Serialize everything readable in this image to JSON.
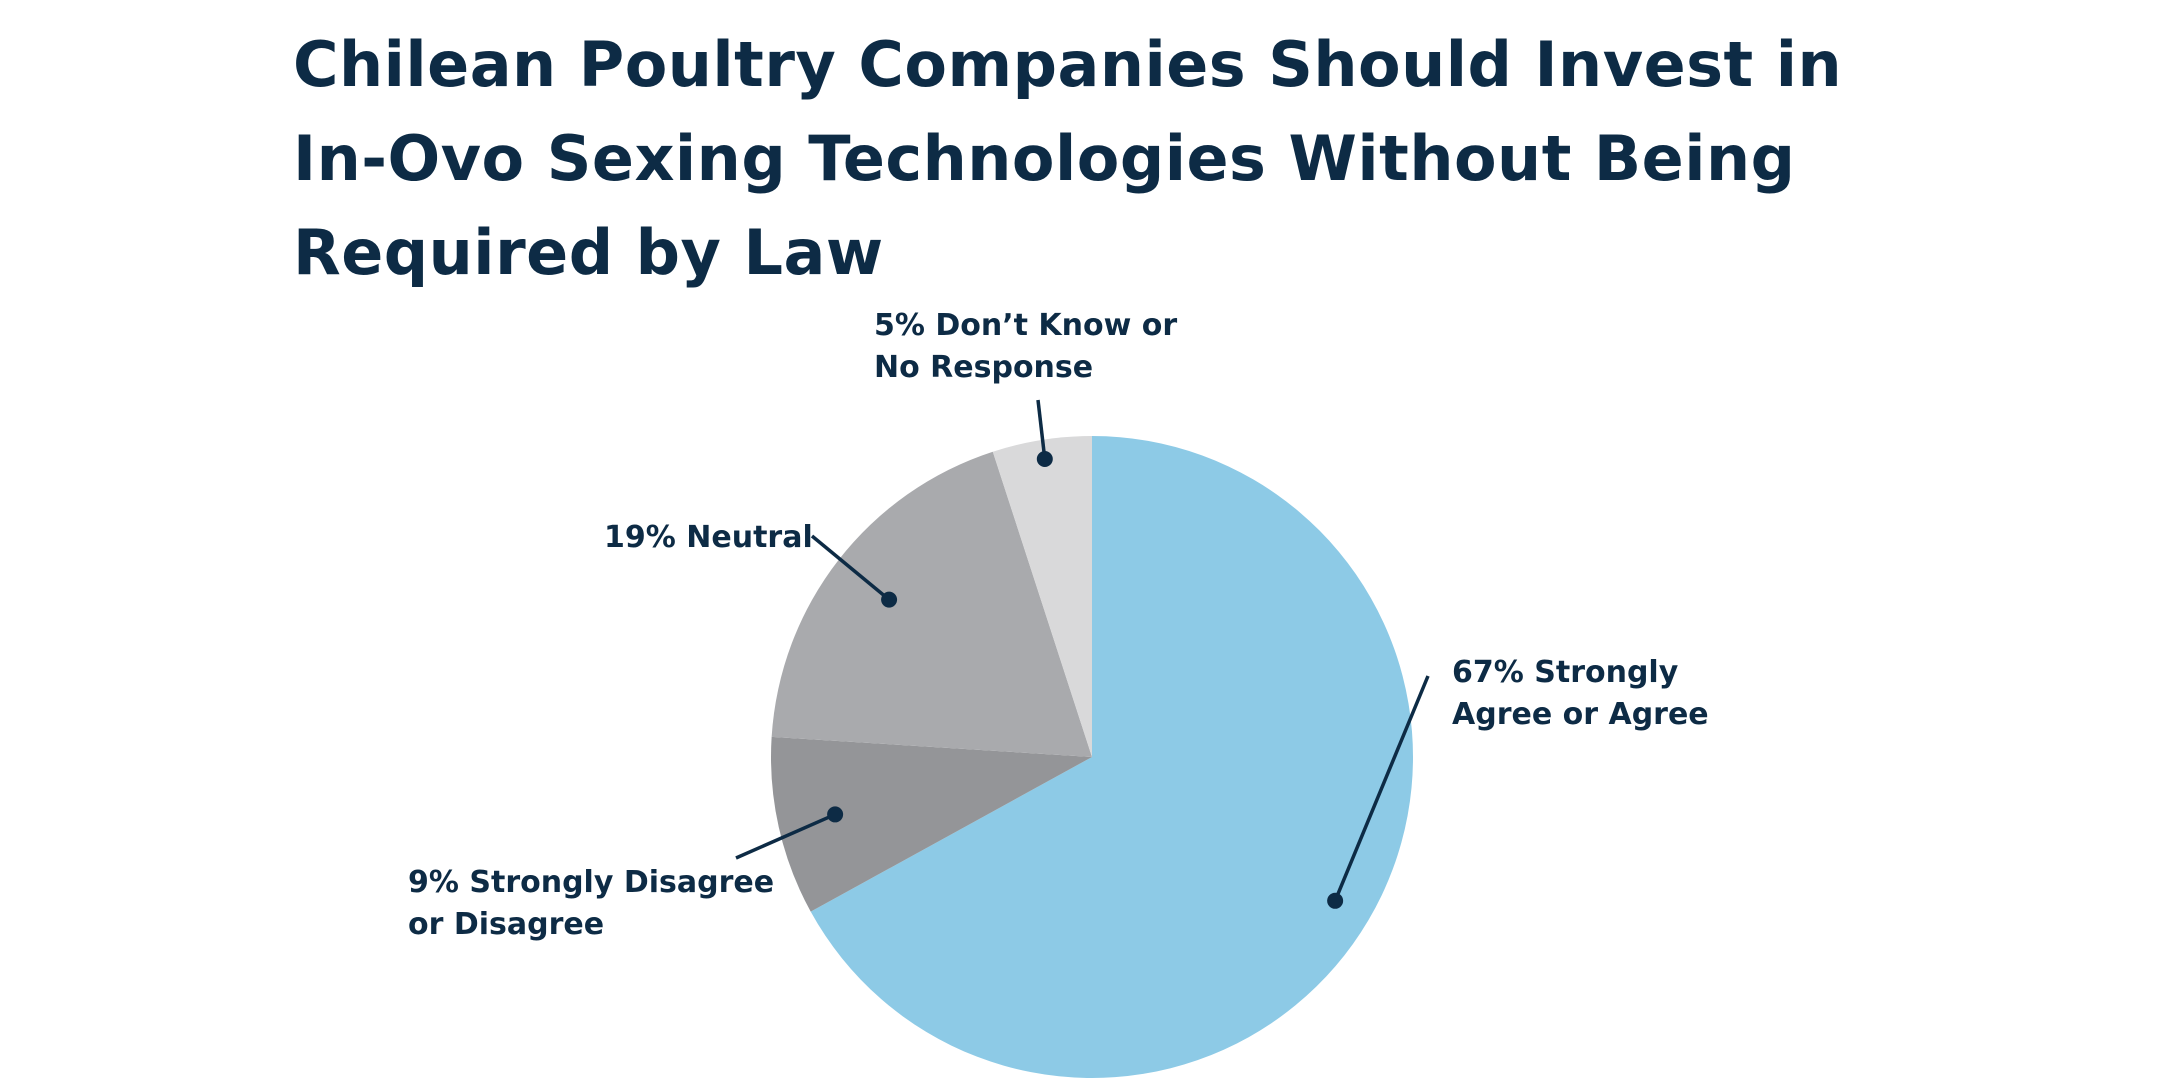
{
  "chart_data": {
    "type": "pie",
    "title_lines": [
      "Chilean Poultry Companies Should Invest in",
      "In-Ovo Sexing Technologies Without Being",
      "Required by Law"
    ],
    "slices": [
      {
        "value": 67,
        "label_lines": [
          "67% Strongly",
          "Agree or Agree"
        ],
        "color": "#8dcae6"
      },
      {
        "value": 9,
        "label_lines": [
          "9% Strongly Disagree",
          "or Disagree"
        ],
        "color": "#949598"
      },
      {
        "value": 19,
        "label_lines": [
          "19% Neutral"
        ],
        "color": "#a9aaad"
      },
      {
        "value": 5,
        "label_lines": [
          "5% Don’t Know or",
          "No Response"
        ],
        "color": "#d9d9da"
      }
    ],
    "text_color": "#0d2b45"
  }
}
